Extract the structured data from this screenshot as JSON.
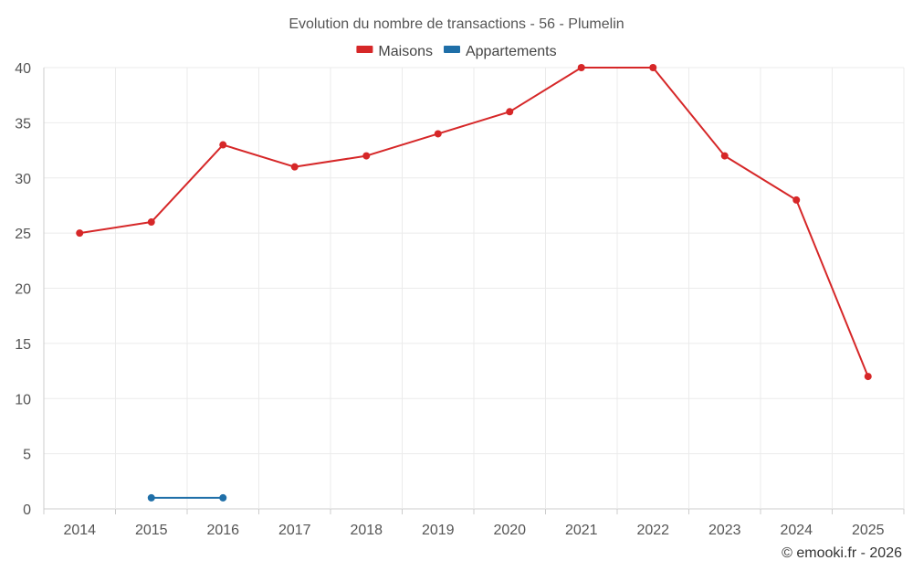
{
  "chart_data": {
    "type": "line",
    "title": "Evolution du nombre de transactions - 56 - Plumelin",
    "categories": [
      "2014",
      "2015",
      "2016",
      "2017",
      "2018",
      "2019",
      "2020",
      "2021",
      "2022",
      "2023",
      "2024",
      "2025"
    ],
    "series": [
      {
        "name": "Maisons",
        "color": "#d62728",
        "values": [
          25,
          26,
          33,
          31,
          32,
          34,
          36,
          40,
          40,
          32,
          28,
          12
        ]
      },
      {
        "name": "Appartements",
        "color": "#1f6fa8",
        "values": [
          null,
          1,
          1,
          null,
          null,
          null,
          null,
          null,
          null,
          null,
          null,
          null
        ]
      }
    ],
    "y_ticks": [
      0,
      5,
      10,
      15,
      20,
      25,
      30,
      35,
      40
    ],
    "ylim": [
      0,
      40
    ],
    "xlabel": "",
    "ylabel": "",
    "grid": true,
    "legend_position": "top-center"
  },
  "footer": {
    "copyright": "© emooki.fr - 2026"
  }
}
